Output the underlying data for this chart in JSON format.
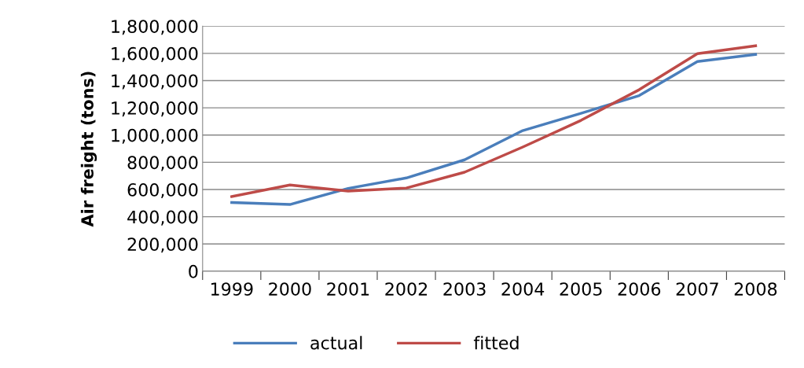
{
  "chart_data": {
    "type": "line",
    "ylabel": "Air freight (tons)",
    "categories": [
      "1999",
      "2000",
      "2001",
      "2002",
      "2003",
      "2004",
      "2005",
      "2006",
      "2007",
      "2008"
    ],
    "series": [
      {
        "name": "actual",
        "color": "#4a7ebb",
        "values": [
          505000,
          490000,
          608000,
          685000,
          818000,
          1033000,
          1160000,
          1290000,
          1540000,
          1592000
        ]
      },
      {
        "name": "fitted",
        "color": "#be4b48",
        "values": [
          548000,
          633000,
          588000,
          611000,
          727000,
          912000,
          1108000,
          1333000,
          1598000,
          1656000
        ]
      }
    ],
    "ylim": [
      0,
      1800000
    ],
    "yticks": [
      {
        "value": 0,
        "label": "0"
      },
      {
        "value": 200000,
        "label": "200,000"
      },
      {
        "value": 400000,
        "label": "400,000"
      },
      {
        "value": 600000,
        "label": "600,000"
      },
      {
        "value": 800000,
        "label": "800,000"
      },
      {
        "value": 1000000,
        "label": "1,000,000"
      },
      {
        "value": 1200000,
        "label": "1,200,000"
      },
      {
        "value": 1400000,
        "label": "1,400,000"
      },
      {
        "value": 1600000,
        "label": "1,600,000"
      },
      {
        "value": 1800000,
        "label": "1,800,000"
      }
    ],
    "grid": "y",
    "legend": "bottom",
    "marker": "none",
    "line_style": "solid"
  }
}
